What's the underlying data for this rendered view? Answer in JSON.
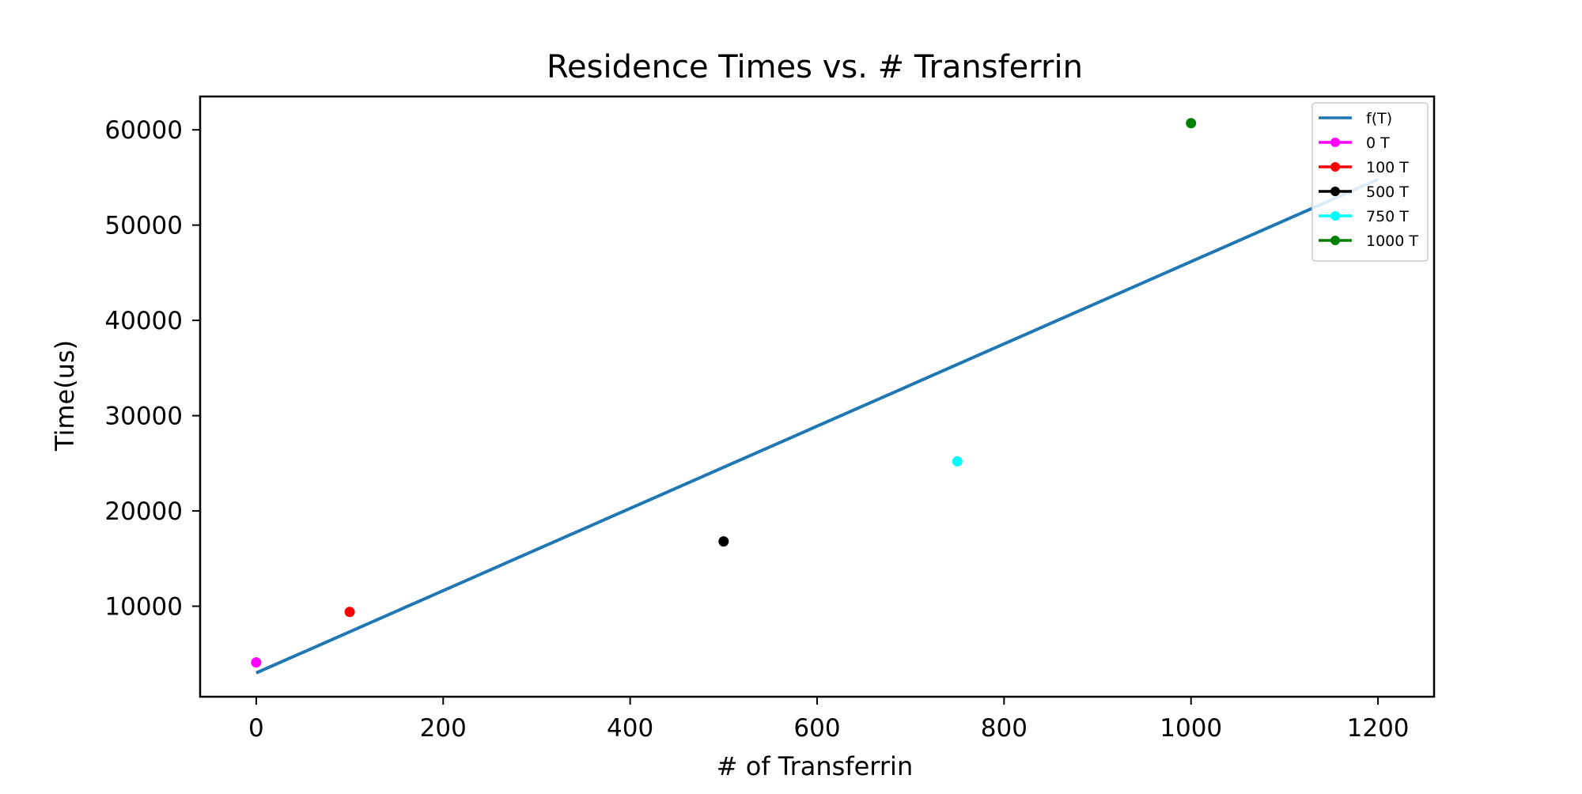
{
  "chart_data": {
    "type": "scatter",
    "title": "Residence Times vs. # Transferrin",
    "xlabel": "# of Transferrin",
    "ylabel": "Time(us)",
    "xlim": [
      -60,
      1260
    ],
    "ylim": [
      500,
      63500
    ],
    "xticks": [
      0,
      200,
      400,
      600,
      800,
      1000,
      1200
    ],
    "xtick_labels": [
      "0",
      "200",
      "400",
      "600",
      "800",
      "1000",
      "1200"
    ],
    "yticks": [
      10000,
      20000,
      30000,
      40000,
      50000,
      60000
    ],
    "ytick_labels": [
      "10000",
      "20000",
      "30000",
      "40000",
      "50000",
      "60000"
    ],
    "grid": false,
    "legend_position": "top-right",
    "line": {
      "name": "f(T)",
      "color": "#1f77b4",
      "x": [
        0,
        1200
      ],
      "y": [
        3000,
        54800
      ]
    },
    "series": [
      {
        "name": "0 T",
        "color": "#ff00ff",
        "x": 0,
        "y": 4100
      },
      {
        "name": "100 T",
        "color": "#ff0000",
        "x": 100,
        "y": 9400
      },
      {
        "name": "500 T",
        "color": "#000000",
        "x": 500,
        "y": 16800
      },
      {
        "name": "750 T",
        "color": "#00ffff",
        "x": 750,
        "y": 25200
      },
      {
        "name": "1000 T",
        "color": "#008000",
        "x": 1000,
        "y": 60700
      }
    ]
  }
}
